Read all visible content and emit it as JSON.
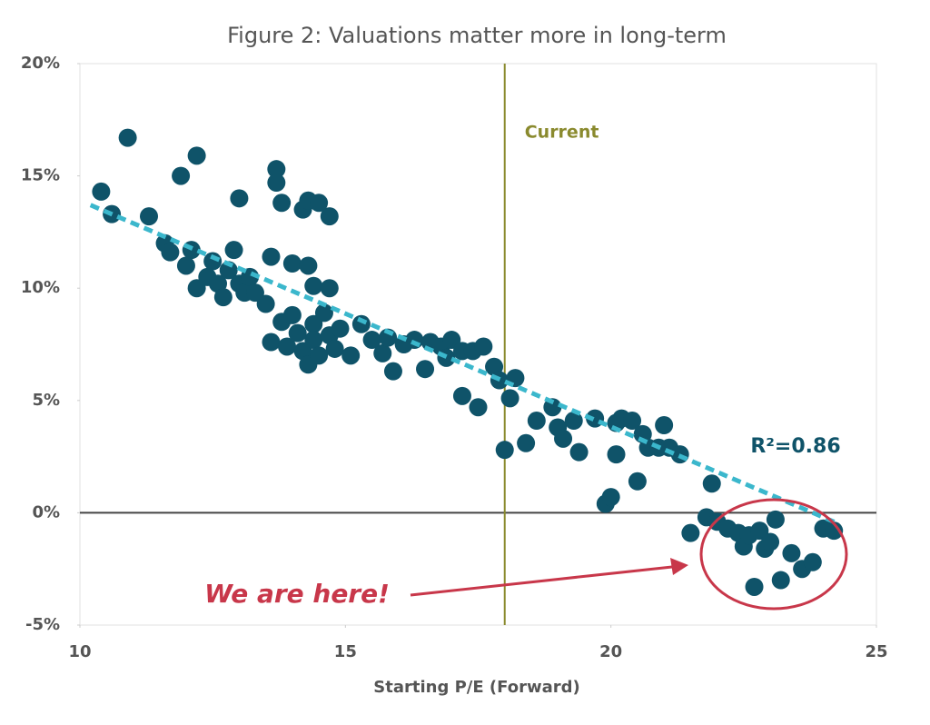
{
  "chart_data": {
    "type": "scatter",
    "title": "Figure 2: Valuations matter more in long-term",
    "x_label": "Starting P/E (Forward)",
    "color": "#0f5369",
    "x": [
      10.4,
      10.6,
      10.9,
      11.3,
      11.6,
      11.7,
      11.9,
      12.1,
      12.2,
      12.0,
      12.2,
      12.4,
      12.5,
      12.6,
      12.7,
      12.8,
      12.9,
      13.0,
      13.0,
      13.1,
      13.2,
      13.3,
      13.5,
      13.6,
      13.6,
      13.7,
      13.7,
      13.8,
      13.8,
      13.9,
      14.0,
      14.0,
      14.1,
      14.2,
      14.2,
      14.3,
      14.3,
      14.3,
      14.4,
      14.4,
      14.4,
      14.5,
      14.5,
      14.6,
      14.7,
      14.7,
      14.7,
      14.8,
      14.9,
      15.1,
      15.3,
      15.5,
      15.7,
      15.8,
      15.9,
      16.1,
      16.3,
      16.5,
      16.6,
      16.8,
      16.9,
      17.0,
      17.2,
      17.2,
      17.4,
      17.5,
      17.6,
      17.8,
      17.9,
      18.0,
      18.1,
      18.2,
      18.4,
      18.6,
      18.9,
      19.0,
      19.1,
      19.3,
      19.4,
      19.7,
      19.9,
      20.0,
      20.1,
      20.1,
      20.2,
      20.4,
      20.5,
      20.6,
      20.7,
      20.9,
      21.0,
      21.1,
      21.3,
      21.5,
      21.8,
      21.9,
      22.0,
      22.2,
      22.4,
      22.5,
      22.6,
      22.7,
      22.8,
      22.9,
      23.0,
      23.1,
      23.2,
      23.4,
      23.6,
      23.8,
      24.0,
      24.2
    ],
    "values": [
      14.3,
      13.3,
      16.7,
      13.2,
      12.0,
      11.6,
      15.0,
      11.7,
      15.9,
      11.0,
      10.0,
      10.5,
      11.2,
      10.2,
      9.6,
      10.8,
      11.7,
      10.2,
      14.0,
      9.8,
      10.5,
      9.8,
      9.3,
      11.4,
      7.6,
      15.3,
      14.7,
      13.8,
      8.5,
      7.4,
      11.1,
      8.8,
      8.0,
      13.5,
      7.2,
      13.9,
      6.6,
      11.0,
      10.1,
      8.4,
      7.7,
      13.8,
      7.0,
      8.9,
      13.2,
      10.0,
      7.9,
      7.3,
      8.2,
      7.0,
      8.4,
      7.7,
      7.1,
      7.8,
      6.3,
      7.5,
      7.7,
      6.4,
      7.6,
      7.4,
      6.9,
      7.7,
      7.2,
      5.2,
      7.2,
      4.7,
      7.4,
      6.5,
      5.9,
      2.8,
      5.1,
      6.0,
      3.1,
      4.1,
      4.7,
      3.8,
      3.3,
      4.1,
      2.7,
      4.2,
      0.4,
      0.7,
      4.0,
      2.6,
      4.2,
      4.1,
      1.4,
      3.5,
      2.9,
      2.9,
      3.9,
      2.9,
      2.6,
      -0.9,
      -0.2,
      1.3,
      -0.4,
      -0.7,
      -0.9,
      -1.5,
      -1.0,
      -3.3,
      -0.8,
      -1.6,
      -1.3,
      -0.3,
      -3.0,
      -1.8,
      -2.5,
      -2.2,
      -0.7,
      -0.8
    ],
    "xlim": [
      10,
      25
    ],
    "xticks": [
      10,
      15,
      20,
      25
    ],
    "ylim": [
      -5,
      20
    ],
    "yticks": [
      {
        "value": -5,
        "label": "-5%"
      },
      {
        "value": 0,
        "label": "0%"
      },
      {
        "value": 5,
        "label": "5%"
      },
      {
        "value": 10,
        "label": "10%"
      },
      {
        "value": 15,
        "label": "15%"
      },
      {
        "value": 20,
        "label": "20%"
      }
    ],
    "trendline": {
      "x": [
        10.2,
        24.3
      ],
      "y": [
        13.7,
        -0.5
      ],
      "color": "#3bb7cc",
      "label": "R²=0.86"
    },
    "reference_line": {
      "x": 18,
      "label": "Current",
      "color": "#8a8a2e"
    },
    "annotation": {
      "text": "We are here!",
      "color": "#c8374a"
    }
  }
}
